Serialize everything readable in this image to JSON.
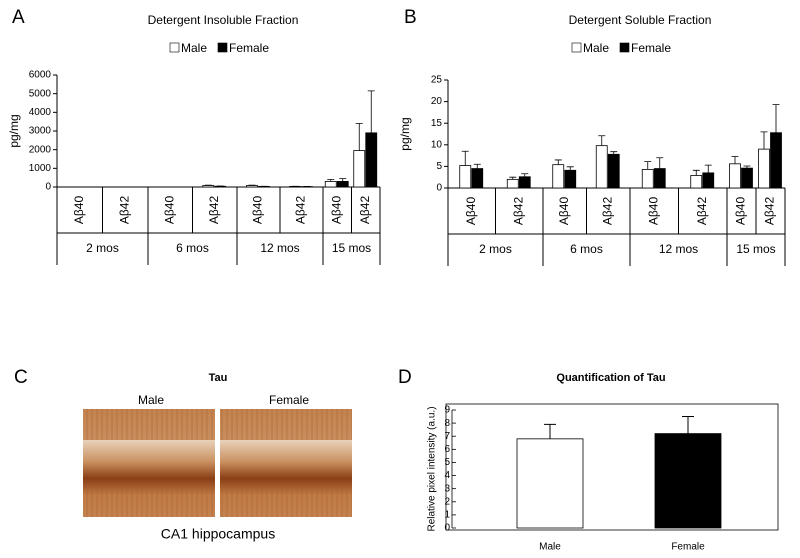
{
  "panel_labels": [
    "A",
    "B",
    "C",
    "D"
  ],
  "image_panel": {
    "title": "Tau",
    "labels": [
      "Male",
      "Female"
    ],
    "caption": "CA1 hippocampus"
  },
  "chart_data": [
    {
      "type": "bar",
      "title": "Detergent Insoluble Fraction",
      "ylabel": "pg/mg",
      "groups": [
        "2 mos",
        "6 mos",
        "12 mos",
        "15 mos"
      ],
      "categories": [
        "Aβ40",
        "Aβ42",
        "Aβ40",
        "Aβ42",
        "Aβ40",
        "Aβ42",
        "Aβ40",
        "Aβ42"
      ],
      "series": [
        {
          "name": "Male",
          "color": "#ffffff",
          "values": [
            0,
            0,
            0,
            80,
            80,
            30,
            300,
            1950
          ],
          "errors": [
            0,
            0,
            0,
            20,
            20,
            10,
            100,
            1450
          ]
        },
        {
          "name": "Female",
          "color": "#000000",
          "values": [
            0,
            0,
            0,
            40,
            30,
            20,
            300,
            2900
          ],
          "errors": [
            0,
            0,
            0,
            10,
            10,
            10,
            150,
            2250
          ]
        }
      ],
      "ylim": [
        0,
        6000
      ],
      "yticks": [
        0,
        1000,
        2000,
        3000,
        4000,
        5000,
        6000
      ]
    },
    {
      "type": "bar",
      "title": "Detergent Soluble Fraction",
      "ylabel": "pg/mg",
      "groups": [
        "2 mos",
        "6 mos",
        "12 mos",
        "15 mos"
      ],
      "categories": [
        "Aβ40",
        "Aβ42",
        "Aβ40",
        "Aβ42",
        "Aβ40",
        "Aβ42",
        "Aβ40",
        "Aβ42"
      ],
      "series": [
        {
          "name": "Male",
          "color": "#ffffff",
          "values": [
            5.2,
            2,
            5.4,
            9.8,
            4.3,
            2.9,
            5.6,
            9
          ],
          "errors": [
            3.3,
            0.5,
            1.1,
            2.3,
            1.8,
            1.2,
            1.7,
            4
          ]
        },
        {
          "name": "Female",
          "color": "#000000",
          "values": [
            4.5,
            2.6,
            4.1,
            7.8,
            4.5,
            3.5,
            4.6,
            12.8
          ],
          "errors": [
            1,
            0.7,
            0.8,
            0.6,
            2.5,
            1.8,
            0.5,
            6.5
          ]
        }
      ],
      "ylim": [
        0,
        25
      ],
      "yticks": [
        0,
        5,
        10,
        15,
        20,
        25
      ]
    },
    {
      "type": "bar",
      "title": "Quantification of Tau",
      "ylabel": "Relative pixel intensity (a.u.)",
      "categories": [
        "Male",
        "Female"
      ],
      "values": [
        6.8,
        7.2
      ],
      "errors": [
        1.1,
        1.3
      ],
      "colors": [
        "#ffffff",
        "#000000"
      ],
      "ylim": [
        0,
        9
      ],
      "yticks": [
        0,
        1,
        2,
        3,
        4,
        5,
        6,
        7,
        8,
        9
      ]
    }
  ]
}
